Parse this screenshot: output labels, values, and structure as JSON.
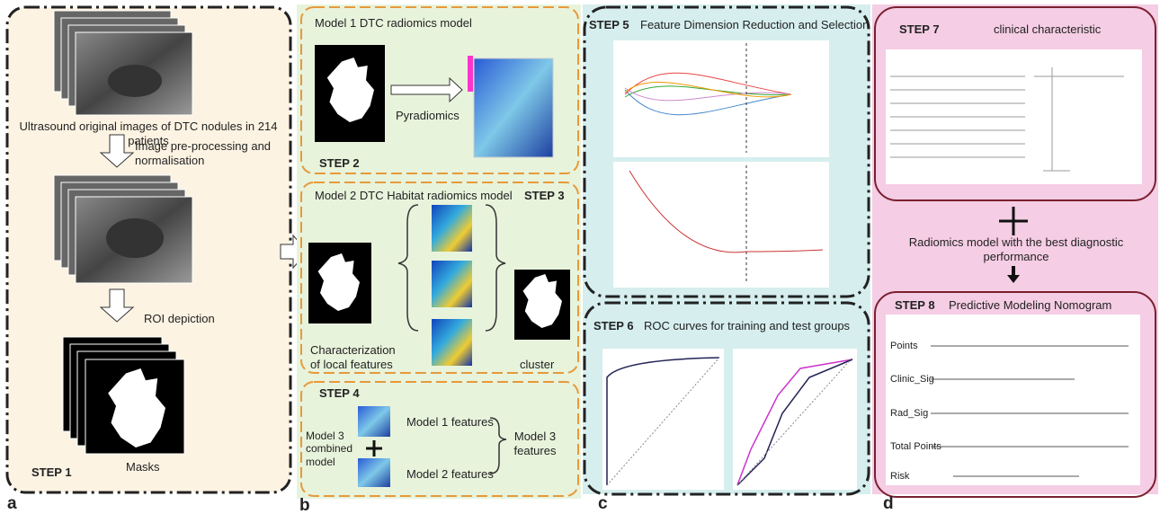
{
  "panel_a": {
    "label": "a",
    "caption_images": "Ultrasound original images of DTC nodules in 214 patients",
    "arrow_1": "Image pre-processing and normalisation",
    "arrow_2": "ROI depiction",
    "caption_masks": "Masks",
    "step": "STEP 1"
  },
  "panel_b": {
    "label": "b",
    "model1": {
      "title": "Model 1 DTC radiomics model",
      "arrow": "Pyradiomics",
      "step": "STEP 2"
    },
    "model2": {
      "title": "Model 2 DTC Habitat radiomics model",
      "step": "STEP 3",
      "caption": "Characterization of local features",
      "cluster": "cluster"
    },
    "model3": {
      "step": "STEP 4",
      "name": "Model 3 combined model",
      "features_1": "Model 1 features",
      "features_2": "Model 2 features",
      "combined": "Model 3 features"
    }
  },
  "panel_c": {
    "label": "c",
    "step5": {
      "step": "STEP 5",
      "title": "Feature Dimension Reduction and Selection"
    },
    "step6": {
      "step": "STEP 6",
      "title": "ROC curves for training and test groups"
    }
  },
  "panel_d": {
    "label": "d",
    "step7": {
      "step": "STEP 7",
      "title": "clinical characteristic"
    },
    "link": "Radiomics model with the best diagnostic performance",
    "step8": {
      "step": "STEP 8",
      "title": "Predictive Modeling Nomogram",
      "rows": [
        "Points",
        "Clinic_Sig",
        "Rad_Sig",
        "Total Points",
        "Risk"
      ]
    }
  }
}
